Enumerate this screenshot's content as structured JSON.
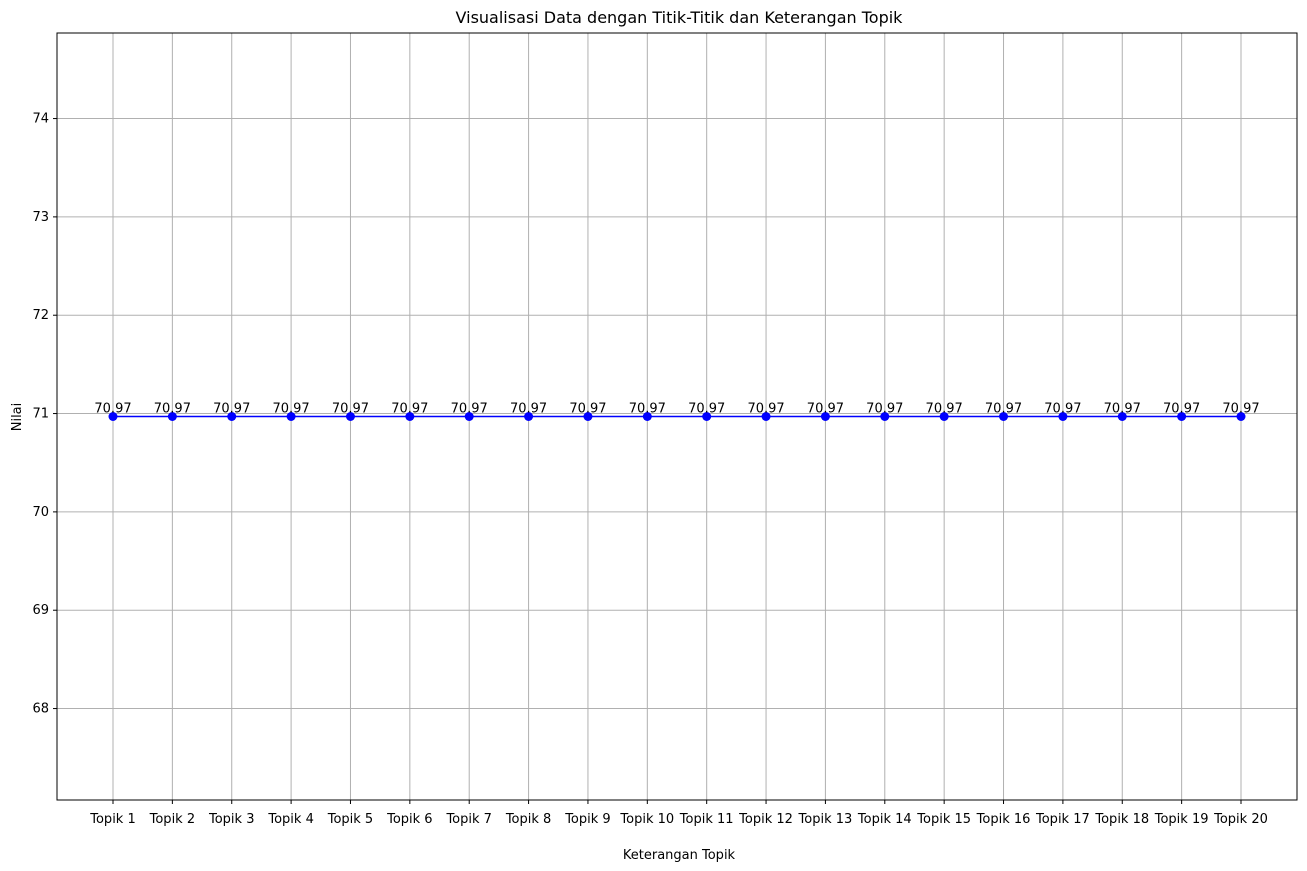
{
  "chart_data": {
    "type": "line",
    "title": "Visualisasi Data dengan Titik-Titik dan Keterangan Topik",
    "xlabel": "Keterangan Topik",
    "ylabel": "Nilai",
    "categories": [
      "Topik 1",
      "Topik 2",
      "Topik 3",
      "Topik 4",
      "Topik 5",
      "Topik 6",
      "Topik 7",
      "Topik 8",
      "Topik 9",
      "Topik 10",
      "Topik 11",
      "Topik 12",
      "Topik 13",
      "Topik 14",
      "Topik 15",
      "Topik 16",
      "Topik 17",
      "Topik 18",
      "Topik 19",
      "Topik 20"
    ],
    "series": [
      {
        "values": [
          70.97,
          70.97,
          70.97,
          70.97,
          70.97,
          70.97,
          70.97,
          70.97,
          70.97,
          70.97,
          70.97,
          70.97,
          70.97,
          70.97,
          70.97,
          70.97,
          70.97,
          70.97,
          70.97,
          70.97
        ],
        "data_labels": [
          "70.97",
          "70.97",
          "70.97",
          "70.97",
          "70.97",
          "70.97",
          "70.97",
          "70.97",
          "70.97",
          "70.97",
          "70.97",
          "70.97",
          "70.97",
          "70.97",
          "70.97",
          "70.97",
          "70.97",
          "70.97",
          "70.97",
          "70.97"
        ],
        "color": "#0000ff",
        "marker": "circle"
      }
    ],
    "ylim": [
      67.07,
      74.87
    ],
    "yticks": [
      68,
      69,
      70,
      71,
      72,
      73,
      74
    ],
    "ytick_labels": [
      "68",
      "69",
      "70",
      "71",
      "72",
      "73",
      "74"
    ],
    "grid": true,
    "grid_color": "#b0b0b0"
  }
}
